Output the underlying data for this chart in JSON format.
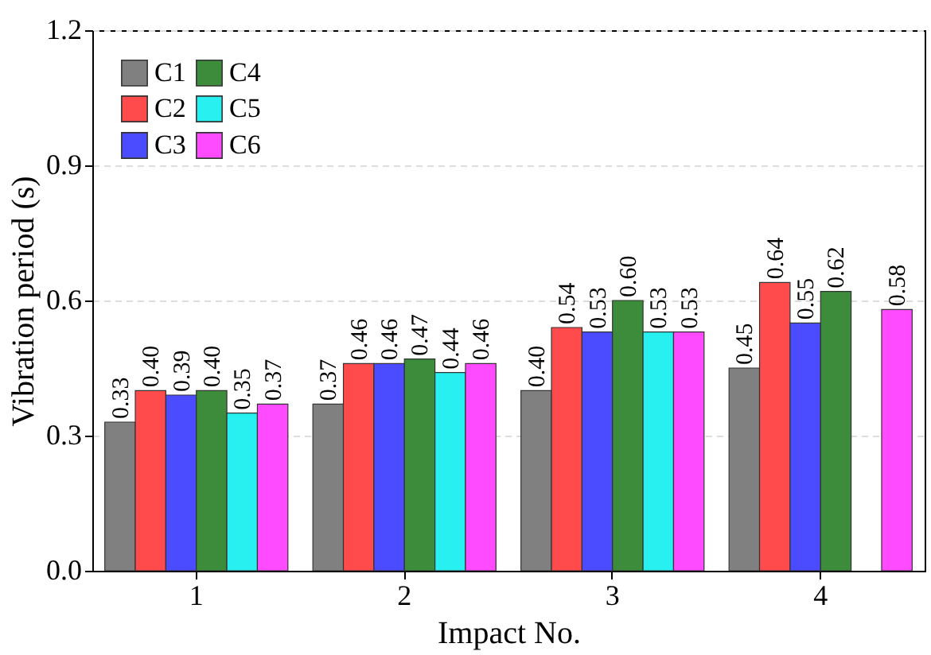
{
  "chart_data": {
    "type": "bar",
    "xlabel": "Impact No.",
    "ylabel": "Vibration period (s)",
    "categories": [
      "1",
      "2",
      "3",
      "4"
    ],
    "series": [
      {
        "name": "C1",
        "color": "#808080",
        "values": [
          0.33,
          0.37,
          0.4,
          0.45
        ],
        "value_labels": [
          "0.33",
          "0.37",
          "0.40",
          "0.45"
        ]
      },
      {
        "name": "C2",
        "color": "#ff4b4b",
        "values": [
          0.4,
          0.46,
          0.54,
          0.64
        ],
        "value_labels": [
          "0.40",
          "0.46",
          "0.54",
          "0.64"
        ]
      },
      {
        "name": "C3",
        "color": "#4b4bff",
        "values": [
          0.39,
          0.46,
          0.53,
          0.55
        ],
        "value_labels": [
          "0.39",
          "0.46",
          "0.53",
          "0.55"
        ]
      },
      {
        "name": "C4",
        "color": "#3c8c3c",
        "values": [
          0.4,
          0.47,
          0.6,
          0.62
        ],
        "value_labels": [
          "0.40",
          "0.47",
          "0.60",
          "0.62"
        ]
      },
      {
        "name": "C5",
        "color": "#28f0f0",
        "values": [
          0.35,
          0.44,
          0.53,
          null
        ],
        "value_labels": [
          "0.35",
          "0.44",
          "0.53",
          null
        ]
      },
      {
        "name": "C6",
        "color": "#ff4bff",
        "values": [
          0.37,
          0.46,
          0.53,
          0.58
        ],
        "value_labels": [
          "0.37",
          "0.46",
          "0.53",
          "0.58"
        ]
      }
    ],
    "ylim": [
      0,
      1.2
    ],
    "yticks": [
      {
        "value": 0,
        "label": "0.0"
      },
      {
        "value": 0.3,
        "label": "0.3"
      },
      {
        "value": 0.6,
        "label": "0.6"
      },
      {
        "value": 0.9,
        "label": "0.9"
      },
      {
        "value": 1.2,
        "label": "1.2"
      }
    ],
    "grid": "y",
    "legend": "top left"
  }
}
